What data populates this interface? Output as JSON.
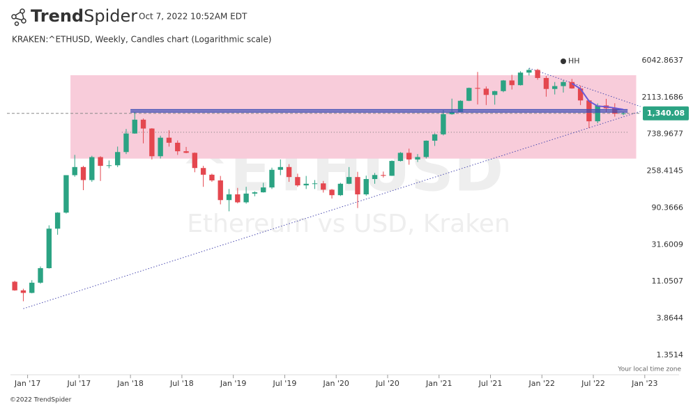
{
  "header": {
    "brand_bold": "Trend",
    "brand_light": "Spider",
    "timestamp": "Oct 7, 2022 10:52AM EDT"
  },
  "footer": {
    "copyright": "©2022 TrendSpider",
    "timezone": "Your local time zone"
  },
  "chart_data": {
    "type": "candlestick",
    "title": "KRAKEN:^ETHUSD, Weekly, Candles chart (Logarithmic scale)",
    "watermark": {
      "symbol": "^ETHUSD",
      "name": "Ethereum vs USD, Kraken"
    },
    "y_scale": "log",
    "up_color": "#2ba383",
    "down_color": "#e4474f",
    "x": [
      "2016-11",
      "2016-12",
      "2017-01",
      "2017-02",
      "2017-03",
      "2017-04",
      "2017-05",
      "2017-06",
      "2017-07",
      "2017-08",
      "2017-09",
      "2017-10",
      "2017-11",
      "2017-12",
      "2018-01",
      "2018-02",
      "2018-03",
      "2018-04",
      "2018-05",
      "2018-06",
      "2018-07",
      "2018-08",
      "2018-09",
      "2018-10",
      "2018-11",
      "2018-12",
      "2019-01",
      "2019-02",
      "2019-03",
      "2019-04",
      "2019-05",
      "2019-06",
      "2019-07",
      "2019-08",
      "2019-09",
      "2019-10",
      "2019-11",
      "2019-12",
      "2020-01",
      "2020-02",
      "2020-03",
      "2020-04",
      "2020-05",
      "2020-06",
      "2020-07",
      "2020-08",
      "2020-09",
      "2020-10",
      "2020-11",
      "2020-12",
      "2021-01",
      "2021-02",
      "2021-03",
      "2021-04",
      "2021-05",
      "2021-06",
      "2021-07",
      "2021-08",
      "2021-09",
      "2021-10",
      "2021-11",
      "2021-12",
      "2022-01",
      "2022-02",
      "2022-03",
      "2022-04",
      "2022-05",
      "2022-06",
      "2022-07",
      "2022-08",
      "2022-09",
      "2022-10"
    ],
    "open": [
      11,
      8.6,
      8.0,
      10.7,
      16.2,
      50,
      79,
      230,
      290,
      200,
      385,
      300,
      305,
      445,
      755,
      1120,
      870,
      395,
      670,
      580,
      455,
      435,
      282,
      233,
      198,
      113,
      133,
      106,
      136,
      141,
      162,
      268,
      290,
      218,
      172,
      180,
      182,
      152,
      130,
      180,
      218,
      133,
      206,
      231,
      226,
      345,
      435,
      360,
      386,
      615,
      737,
      1310,
      1420,
      1920,
      2770,
      2710,
      2270,
      2530,
      3430,
      3000,
      4290,
      4630,
      3680,
      2690,
      2920,
      3280,
      2730,
      1940,
      1070,
      1680,
      1550,
      1330
    ],
    "high": [
      11.3,
      9.0,
      11.5,
      17,
      55,
      80,
      230,
      410,
      300,
      400,
      395,
      350,
      520,
      860,
      1420,
      1160,
      880,
      710,
      830,
      620,
      515,
      440,
      300,
      240,
      225,
      155,
      160,
      165,
      145,
      185,
      285,
      360,
      315,
      240,
      225,
      200,
      195,
      155,
      185,
      290,
      253,
      227,
      245,
      255,
      350,
      445,
      490,
      420,
      620,
      760,
      1470,
      2040,
      1950,
      2800,
      4370,
      2890,
      2560,
      3470,
      4030,
      4460,
      4870,
      4780,
      3900,
      3280,
      3480,
      3580,
      2950,
      1970,
      1780,
      2030,
      1790,
      1400
    ],
    "low": [
      8.5,
      6.3,
      7.9,
      10.4,
      16,
      42,
      77,
      220,
      150,
      190,
      195,
      280,
      290,
      420,
      750,
      570,
      360,
      370,
      520,
      410,
      430,
      250,
      165,
      190,
      100,
      82,
      103,
      102,
      126,
      140,
      155,
      230,
      190,
      165,
      155,
      155,
      140,
      118,
      127,
      178,
      90,
      128,
      180,
      215,
      225,
      340,
      310,
      335,
      370,
      530,
      715,
      1290,
      1420,
      1900,
      1730,
      1700,
      1720,
      2450,
      2650,
      2970,
      3950,
      3500,
      2160,
      2300,
      2430,
      2710,
      1700,
      880,
      1010,
      1420,
      1220,
      1270
    ],
    "close": [
      8.6,
      8.0,
      10.7,
      16.2,
      50,
      79,
      230,
      290,
      200,
      385,
      300,
      305,
      445,
      755,
      1120,
      870,
      395,
      670,
      580,
      455,
      435,
      282,
      233,
      198,
      113,
      133,
      106,
      136,
      141,
      162,
      268,
      290,
      218,
      172,
      180,
      182,
      152,
      130,
      180,
      218,
      133,
      206,
      231,
      226,
      345,
      435,
      360,
      386,
      615,
      737,
      1310,
      1420,
      1920,
      2770,
      2710,
      2270,
      2530,
      3430,
      3000,
      4290,
      4630,
      3680,
      2690,
      2920,
      3280,
      2730,
      1940,
      1070,
      1680,
      1550,
      1330,
      1340.08
    ],
    "xlim": [
      "2016-11",
      "2023-05"
    ],
    "xticks": [
      {
        "value": "2017-01",
        "label": "Jan '17"
      },
      {
        "value": "2017-07",
        "label": "Jul '17"
      },
      {
        "value": "2018-01",
        "label": "Jan '18"
      },
      {
        "value": "2018-07",
        "label": "Jul '18"
      },
      {
        "value": "2019-01",
        "label": "Jan '19"
      },
      {
        "value": "2019-07",
        "label": "Jul '19"
      },
      {
        "value": "2020-01",
        "label": "Jan '20"
      },
      {
        "value": "2020-07",
        "label": "Jul '20"
      },
      {
        "value": "2021-01",
        "label": "Jan '21"
      },
      {
        "value": "2021-07",
        "label": "Jul '21"
      },
      {
        "value": "2022-01",
        "label": "Jan '22"
      },
      {
        "value": "2022-07",
        "label": "Jul '22"
      },
      {
        "value": "2023-01",
        "label": "Jan '23"
      }
    ],
    "ylim": [
      0.822,
      7670
    ],
    "yticks": [
      6042.8637,
      2113.1686,
      738.9677,
      258.4145,
      90.3666,
      31.6009,
      11.0507,
      3.8644,
      1.3514
    ],
    "last_price": {
      "value": 1340.08,
      "label": "1,340.08"
    },
    "zone": {
      "x": [
        "2017-06",
        "2022-12"
      ],
      "y": [
        369,
        3980
      ],
      "color": "#f8ccda"
    },
    "levels": {
      "x": [
        "2018-01",
        "2022-11"
      ],
      "values": [
        1480,
        1400
      ],
      "color": "#3f4fb5"
    },
    "support_line": {
      "x": [
        "2017-12",
        "2022-11"
      ],
      "value": 783
    },
    "trendlines": [
      {
        "x": [
          "2016-12",
          "2022-12"
        ],
        "y": [
          5.1,
          1420
        ]
      },
      {
        "x": [
          "2021-11",
          "2022-12"
        ],
        "y": [
          4870,
          1630
        ]
      }
    ],
    "moving_average": {
      "x": [
        "2022-04",
        "2022-05",
        "2022-06",
        "2022-07",
        "2022-08",
        "2022-09",
        "2022-10"
      ],
      "values": [
        3150,
        2700,
        1900,
        1650,
        1620,
        1560,
        1500
      ],
      "color": "#6a5ad6"
    },
    "marker": {
      "x": "2022-03",
      "label": "HH"
    }
  }
}
